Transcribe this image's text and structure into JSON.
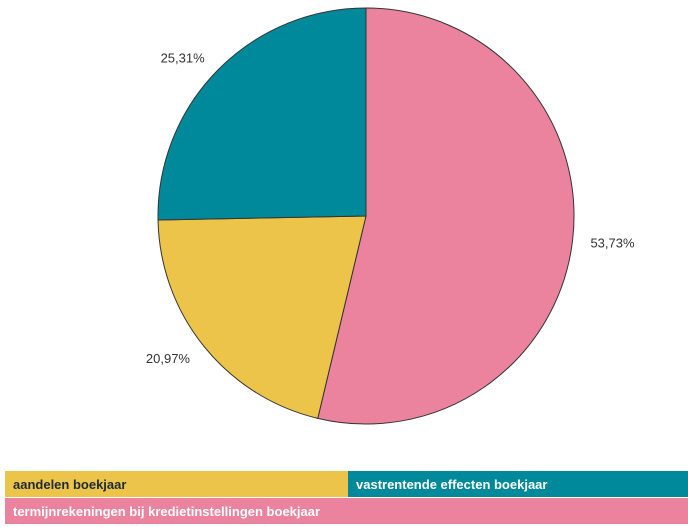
{
  "chart_data": {
    "type": "pie",
    "title": "",
    "start_angle_deg": 0,
    "direction": "clockwise",
    "slices": [
      {
        "label": "termijnrekeningen bij kredietinstellingen boekjaar",
        "value": 53.73,
        "display": "53,73%",
        "color": "#ec839e"
      },
      {
        "label": "aandelen boekjaar",
        "value": 20.97,
        "display": "20,97%",
        "color": "#ecc44a"
      },
      {
        "label": "vastrentende effecten boekjaar",
        "value": 25.31,
        "display": "25,31%",
        "color": "#00899b"
      }
    ],
    "legend": {
      "placement": "bottom",
      "rows": [
        [
          {
            "label": "aandelen boekjaar",
            "color": "#ecc44a"
          },
          {
            "label": "vastrentende effecten boekjaar",
            "color": "#00899b"
          }
        ],
        [
          {
            "label": "termijnrekeningen bij kredietinstellingen boekjaar",
            "color": "#ec839e"
          }
        ]
      ]
    }
  }
}
